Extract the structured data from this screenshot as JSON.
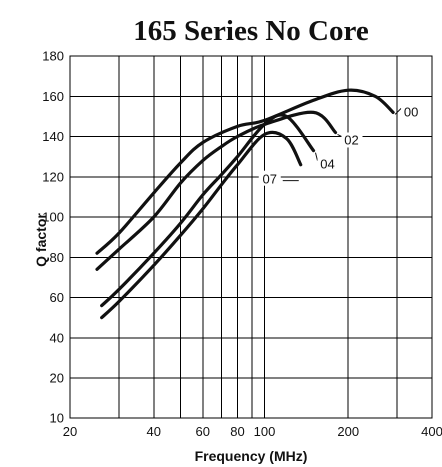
{
  "chart_data": {
    "type": "line",
    "title": "165 Series No Core",
    "xlabel": "Frequency (MHz)",
    "ylabel": "Q factor",
    "xscale": "log",
    "xlim": [
      20,
      400
    ],
    "ylim": [
      10,
      180
    ],
    "x_ticks": [
      20,
      40,
      60,
      80,
      100,
      200,
      400
    ],
    "x_gridlines": [
      20,
      30,
      40,
      50,
      60,
      70,
      80,
      90,
      100,
      200,
      300,
      400
    ],
    "y_ticks": [
      10,
      20,
      40,
      60,
      80,
      100,
      120,
      140,
      160,
      180
    ],
    "grid": true,
    "legend": "none",
    "series": [
      {
        "name": "00",
        "x": [
          25,
          30,
          40,
          50,
          60,
          80,
          100,
          150,
          200,
          250,
          290
        ],
        "y": [
          82,
          92,
          112,
          127,
          137,
          145,
          148,
          158,
          163,
          160,
          152
        ]
      },
      {
        "name": "02",
        "x": [
          25,
          30,
          40,
          50,
          60,
          70,
          80,
          100,
          150,
          180
        ],
        "y": [
          74,
          84,
          100,
          117,
          128,
          135,
          140,
          146,
          152,
          142
        ]
      },
      {
        "name": "04",
        "x": [
          26,
          30,
          40,
          50,
          60,
          70,
          80,
          100,
          120,
          150
        ],
        "y": [
          56,
          64,
          82,
          97,
          111,
          121,
          130,
          146,
          150,
          133
        ]
      },
      {
        "name": "07",
        "x": [
          26,
          30,
          40,
          50,
          60,
          70,
          80,
          100,
          120,
          135
        ],
        "y": [
          50,
          58,
          76,
          91,
          104,
          116,
          126,
          141,
          139,
          126
        ]
      }
    ]
  }
}
